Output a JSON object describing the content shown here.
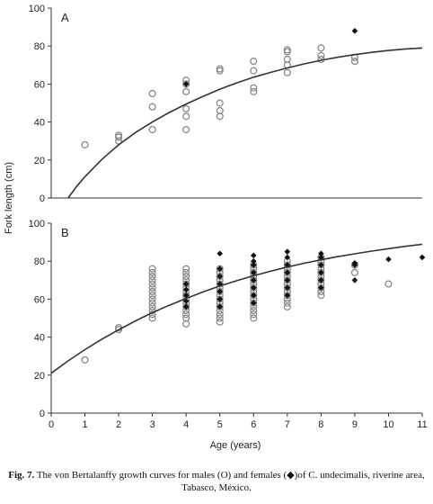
{
  "chart_data": [
    {
      "panel": "A",
      "type": "scatter",
      "x_range": [
        0,
        11
      ],
      "ylim": [
        0,
        100
      ],
      "y_ticks": [
        0,
        20,
        40,
        60,
        80,
        100
      ],
      "series": [
        {
          "marker": "open-circle",
          "color": "#888888",
          "points": [
            [
              1,
              28
            ],
            [
              2,
              30
            ],
            [
              2,
              32
            ],
            [
              2,
              33
            ],
            [
              3,
              36
            ],
            [
              3,
              48
            ],
            [
              3,
              55
            ],
            [
              4,
              36
            ],
            [
              4,
              43
            ],
            [
              4,
              47
            ],
            [
              4,
              56
            ],
            [
              4,
              60
            ],
            [
              4,
              62
            ],
            [
              5,
              43
            ],
            [
              5,
              46
            ],
            [
              5,
              50
            ],
            [
              5,
              67
            ],
            [
              5,
              68
            ],
            [
              6,
              56
            ],
            [
              6,
              58
            ],
            [
              6,
              67
            ],
            [
              6,
              72
            ],
            [
              7,
              66
            ],
            [
              7,
              70
            ],
            [
              7,
              73
            ],
            [
              7,
              77
            ],
            [
              7,
              78
            ],
            [
              8,
              73
            ],
            [
              8,
              75
            ],
            [
              8,
              79
            ],
            [
              9,
              72
            ],
            [
              9,
              74
            ]
          ]
        },
        {
          "marker": "filled-diamond",
          "color": "#111111",
          "points": [
            [
              4,
              60
            ],
            [
              9,
              88
            ]
          ]
        },
        {
          "type": "line",
          "color": "#333333",
          "curve": [
            [
              0.5,
              0
            ],
            [
              0.75,
              6
            ],
            [
              1,
              11.2
            ],
            [
              1.5,
              20.3
            ],
            [
              2,
              28
            ],
            [
              2.5,
              34.5
            ],
            [
              3,
              40
            ],
            [
              3.5,
              45
            ],
            [
              4,
              49.5
            ],
            [
              4.5,
              53.5
            ],
            [
              5,
              57.3
            ],
            [
              5.5,
              60.6
            ],
            [
              6,
              63.6
            ],
            [
              6.5,
              66.1
            ],
            [
              7,
              68.5
            ],
            [
              7.5,
              70.6
            ],
            [
              8,
              72.5
            ],
            [
              8.5,
              74.1
            ],
            [
              9,
              75.5
            ],
            [
              9.5,
              76.7
            ],
            [
              10,
              77.7
            ],
            [
              10.5,
              78.5
            ],
            [
              11,
              79
            ]
          ]
        }
      ]
    },
    {
      "panel": "B",
      "type": "scatter",
      "xlim": [
        0,
        11
      ],
      "ylim": [
        0,
        100
      ],
      "x_ticks": [
        0,
        1,
        2,
        3,
        4,
        5,
        6,
        7,
        8,
        9,
        10,
        11
      ],
      "y_ticks": [
        0,
        20,
        40,
        60,
        80,
        100
      ],
      "xlabel": "Age (years)",
      "series": [
        {
          "marker": "open-circle",
          "color": "#888888",
          "points": [
            [
              1,
              28
            ],
            [
              2,
              44
            ],
            [
              2,
              45
            ],
            [
              3,
              50
            ],
            [
              3,
              52
            ],
            [
              3,
              54
            ],
            [
              3,
              56
            ],
            [
              3,
              58
            ],
            [
              3,
              60
            ],
            [
              3,
              62
            ],
            [
              3,
              64
            ],
            [
              3,
              66
            ],
            [
              3,
              68
            ],
            [
              3,
              70
            ],
            [
              3,
              72
            ],
            [
              3,
              74
            ],
            [
              3,
              76
            ],
            [
              4,
              47
            ],
            [
              4,
              50
            ],
            [
              4,
              52
            ],
            [
              4,
              54
            ],
            [
              4,
              56
            ],
            [
              4,
              58
            ],
            [
              4,
              60
            ],
            [
              4,
              62
            ],
            [
              4,
              64
            ],
            [
              4,
              66
            ],
            [
              4,
              68
            ],
            [
              4,
              70
            ],
            [
              4,
              72
            ],
            [
              4,
              74
            ],
            [
              4,
              76
            ],
            [
              5,
              48
            ],
            [
              5,
              50
            ],
            [
              5,
              52
            ],
            [
              5,
              54
            ],
            [
              5,
              56
            ],
            [
              5,
              58
            ],
            [
              5,
              60
            ],
            [
              5,
              62
            ],
            [
              5,
              64
            ],
            [
              5,
              66
            ],
            [
              5,
              68
            ],
            [
              5,
              70
            ],
            [
              5,
              72
            ],
            [
              5,
              74
            ],
            [
              5,
              76
            ],
            [
              6,
              50
            ],
            [
              6,
              52
            ],
            [
              6,
              54
            ],
            [
              6,
              56
            ],
            [
              6,
              58
            ],
            [
              6,
              60
            ],
            [
              6,
              62
            ],
            [
              6,
              64
            ],
            [
              6,
              66
            ],
            [
              6,
              68
            ],
            [
              6,
              70
            ],
            [
              6,
              72
            ],
            [
              6,
              74
            ],
            [
              6,
              76
            ],
            [
              6,
              78
            ],
            [
              7,
              56
            ],
            [
              7,
              58
            ],
            [
              7,
              60
            ],
            [
              7,
              62
            ],
            [
              7,
              64
            ],
            [
              7,
              66
            ],
            [
              7,
              68
            ],
            [
              7,
              70
            ],
            [
              7,
              72
            ],
            [
              7,
              74
            ],
            [
              7,
              76
            ],
            [
              7,
              78
            ],
            [
              7,
              80
            ],
            [
              8,
              62
            ],
            [
              8,
              64
            ],
            [
              8,
              66
            ],
            [
              8,
              68
            ],
            [
              8,
              70
            ],
            [
              8,
              72
            ],
            [
              8,
              74
            ],
            [
              8,
              76
            ],
            [
              8,
              78
            ],
            [
              8,
              80
            ],
            [
              8,
              82
            ],
            [
              9,
              74
            ],
            [
              9,
              78
            ],
            [
              10,
              68
            ]
          ]
        },
        {
          "marker": "filled-diamond",
          "color": "#111111",
          "points": [
            [
              4,
              56
            ],
            [
              4,
              59
            ],
            [
              4,
              62
            ],
            [
              4,
              65
            ],
            [
              4,
              68
            ],
            [
              5,
              56
            ],
            [
              5,
              60
            ],
            [
              5,
              64
            ],
            [
              5,
              68
            ],
            [
              5,
              72
            ],
            [
              5,
              76
            ],
            [
              5,
              84
            ],
            [
              6,
              58
            ],
            [
              6,
              62
            ],
            [
              6,
              66
            ],
            [
              6,
              70
            ],
            [
              6,
              74
            ],
            [
              6,
              78
            ],
            [
              6,
              80
            ],
            [
              6,
              83
            ],
            [
              7,
              62
            ],
            [
              7,
              66
            ],
            [
              7,
              70
            ],
            [
              7,
              74
            ],
            [
              7,
              78
            ],
            [
              7,
              82
            ],
            [
              7,
              85
            ],
            [
              8,
              66
            ],
            [
              8,
              70
            ],
            [
              8,
              74
            ],
            [
              8,
              78
            ],
            [
              8,
              82
            ],
            [
              8,
              84
            ],
            [
              9,
              70
            ],
            [
              9,
              78
            ],
            [
              9,
              79
            ],
            [
              10,
              81
            ],
            [
              11,
              82
            ]
          ]
        },
        {
          "type": "line",
          "color": "#333333",
          "curve": [
            [
              0,
              21
            ],
            [
              0.5,
              27.5
            ],
            [
              1,
              33.4
            ],
            [
              1.5,
              38.9
            ],
            [
              2,
              43.9
            ],
            [
              2.5,
              48.6
            ],
            [
              3,
              52.9
            ],
            [
              3.5,
              56.8
            ],
            [
              4,
              60.4
            ],
            [
              4.5,
              63.8
            ],
            [
              5,
              66.9
            ],
            [
              5.5,
              69.7
            ],
            [
              6,
              72.3
            ],
            [
              6.5,
              74.7
            ],
            [
              7,
              76.9
            ],
            [
              7.5,
              78.9
            ],
            [
              8,
              80.7
            ],
            [
              8.5,
              82.4
            ],
            [
              9,
              83.9
            ],
            [
              9.5,
              85.3
            ],
            [
              10,
              86.6
            ],
            [
              10.5,
              87.8
            ],
            [
              11,
              88.9
            ]
          ]
        }
      ]
    }
  ],
  "shared": {
    "ylabel": "Fork length (cm)"
  },
  "caption": {
    "fig_label": "Fig. 7.",
    "text": " The von Bertalanffy growth curves for males (O) and females (◆)of C. undecimalis, riverine area, Tabasco, México."
  }
}
